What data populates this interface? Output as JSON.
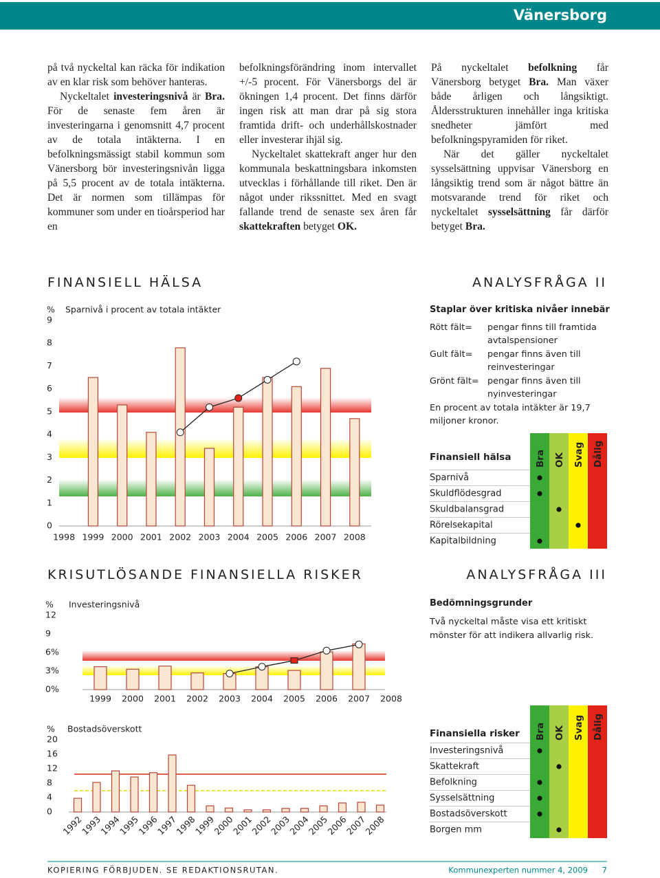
{
  "header": {
    "title": "Vänersborg"
  },
  "columns": [
    [
      [
        {
          "text": "på två nyckeltal kan räcka för indikation av en klar risk som behöver hanteras.",
          "bold": false
        }
      ],
      [
        {
          "text": "Nyckeltalet ",
          "bold": false
        },
        {
          "text": "investeringsnivå",
          "bold": true
        },
        {
          "text": " är ",
          "bold": false
        },
        {
          "text": "Bra.",
          "bold": true
        },
        {
          "text": " För de senaste fem åren är investeringarna i genomsnitt 4,7 procent av de totala intäkterna. I en befolkningsmässigt stabil kommun som Vänersborg bör investeringsnivån ligga på 5,5 procent av de totala intäkterna. Det är normen som tillämpas för kommuner som under en tioårsperiod har en",
          "bold": false
        }
      ]
    ],
    [
      [
        {
          "text": "befolkningsförändring inom intervallet +/-5 procent. För Vänersborgs del är ökningen 1,4 procent. Det finns därför ingen risk att man drar på sig stora framtida drift- och underhållskostnader eller investerar ihjäl sig.",
          "bold": false
        }
      ],
      [
        {
          "text": "Nyckeltalet skattekraft anger hur den kommunala beskattningsbara inkomsten utvecklas i förhållande till riket. Den är något under rikssnittet. Med en svagt fallande trend de senaste sex åren får ",
          "bold": false
        },
        {
          "text": "skattekraften",
          "bold": true
        },
        {
          "text": " betyget ",
          "bold": false
        },
        {
          "text": "OK.",
          "bold": true
        }
      ]
    ],
    [
      [
        {
          "text": "På nyckeltalet ",
          "bold": false
        },
        {
          "text": "befolkning",
          "bold": true
        },
        {
          "text": " får Vänersborg betyget ",
          "bold": false
        },
        {
          "text": "Bra.",
          "bold": true
        },
        {
          "text": " Man växer både årligen och långsiktigt. Åldersstrukturen innehåller inga kritiska snedheter jämfört med befolkningspyramiden för riket.",
          "bold": false
        }
      ],
      [
        {
          "text": "När det gäller nyckeltalet sysselsättning uppvisar Vänersborg en långsiktig trend som är något bättre än motsvarande trend för riket och nyckeltalet ",
          "bold": false
        },
        {
          "text": "sysselsättning",
          "bold": true
        },
        {
          "text": " får därför betyget ",
          "bold": false
        },
        {
          "text": "Bra.",
          "bold": true
        }
      ]
    ]
  ],
  "sections": [
    {
      "title": "FINANSIELL HÄLSA",
      "tag": "ANALYSFRÅGA II"
    },
    {
      "title": "KRISUTLÖSANDE FINANSIELLA RISKER",
      "tag": "ANALYSFRÅGA III"
    }
  ],
  "chart_data": [
    {
      "type": "bar",
      "title": "Sparnivå i procent av totala intäkter",
      "ylabel": "%",
      "categories": [
        "1998",
        "1999",
        "2000",
        "2001",
        "2002",
        "2003",
        "2004",
        "2005",
        "2006",
        "2007",
        "2008"
      ],
      "values": [
        null,
        6.5,
        5.3,
        4.1,
        7.8,
        3.4,
        5.2,
        6.5,
        6.1,
        6.9,
        4.7
      ],
      "color": "#fbe6d2",
      "stroke": "#b5473a",
      "line_values": [
        null,
        null,
        null,
        null,
        4.1,
        5.2,
        5.6,
        6.4,
        7.2,
        null,
        null
      ],
      "line_color": "#222222",
      "marker_fills": [
        null,
        null,
        null,
        null,
        "#ffffff",
        "#ffffff",
        "#e2231a",
        "#ffffff",
        "#ffffff",
        null,
        null
      ],
      "marker_shapes": [
        null,
        null,
        null,
        null,
        "circle",
        "circle",
        "circle",
        "circle",
        "circle",
        null,
        null
      ],
      "ylim": [
        0,
        9
      ],
      "yticks": [
        0,
        1,
        2,
        3,
        4,
        5,
        6,
        7,
        8,
        9
      ]
    },
    {
      "type": "bar",
      "title": "Investeringsnivå",
      "ylabel": "%",
      "categories": [
        "1999",
        "2000",
        "2001",
        "2002",
        "2003",
        "2004",
        "2005",
        "2006",
        "2007",
        "2008"
      ],
      "values": [
        3.7,
        3.3,
        3.8,
        2.7,
        2.6,
        3.7,
        3.1,
        6.1,
        7.4,
        null
      ],
      "color": "#fbe6d2",
      "stroke": "#b5473a",
      "line_values": [
        null,
        null,
        null,
        null,
        2.6,
        3.7,
        4.7,
        6.3,
        7.3,
        null
      ],
      "line_color": "#222222",
      "marker_fills": [
        null,
        null,
        null,
        null,
        "#ffffff",
        "#ffffff",
        "#e2231a",
        "#ffffff",
        "#ffffff",
        null
      ],
      "marker_shapes": [
        null,
        null,
        null,
        null,
        "circle",
        "circle",
        "square",
        "circle",
        "circle",
        null
      ],
      "ylim": [
        0,
        12
      ],
      "yticks": [
        {
          "value": 0,
          "label": "0%"
        },
        {
          "value": 3,
          "label": "3%"
        },
        {
          "value": 6,
          "label": "6%"
        },
        9,
        12
      ]
    },
    {
      "type": "bar",
      "title": "Bostadsöverskott",
      "ylabel": "%",
      "categories": [
        "1992",
        "1993",
        "1994",
        "1995",
        "1996",
        "1997",
        "1998",
        "1999",
        "2000",
        "2001",
        "2002",
        "2003",
        "2004",
        "2005",
        "2006",
        "2007",
        "2008"
      ],
      "values": [
        3.8,
        8.2,
        11.4,
        9.7,
        10.9,
        15.8,
        7.4,
        1.7,
        1.1,
        0.6,
        0.6,
        1.0,
        1.0,
        1.7,
        2.5,
        2.7,
        1.9
      ],
      "color": "#fbe6d2",
      "stroke": "#b5473a",
      "ylim": [
        0,
        20
      ],
      "yticks": [
        0,
        4,
        8,
        12,
        16,
        20
      ]
    }
  ],
  "legend_box": {
    "title": "Staplar över kritiska nivåer innebär",
    "items": [
      {
        "key": "Rött fält=",
        "text": "pengar finns till framtida avtalspensioner"
      },
      {
        "key": "Gult fält=",
        "text": "pengar finns även till reinvesteringar"
      },
      {
        "key": "Grönt fält=",
        "text": "pengar finns även till nyinvesteringar"
      }
    ],
    "note": "En procent av totala intäkter är 19,7 miljoner kronor."
  },
  "criteria": {
    "title": "Bedömningsgrunder",
    "text": "Två nyckeltal måste visa ett kritiskt mönster för att indikera allvarlig risk."
  },
  "tables": [
    {
      "title": "Finansiell hälsa",
      "columns": [
        "Bra",
        "OK",
        "Svag",
        "Dålig"
      ],
      "column_colors": [
        "#3aa935",
        "#a9cf46",
        "#fff200",
        "#e2231a"
      ],
      "rows": [
        {
          "label": "Sparnivå",
          "rating": 0
        },
        {
          "label": "Skuldflödesgrad",
          "rating": 0
        },
        {
          "label": "Skuldbalansgrad",
          "rating": 1
        },
        {
          "label": "Rörelsekapital",
          "rating": 2
        },
        {
          "label": "Kapitalbildning",
          "rating": 0
        }
      ]
    },
    {
      "title": "Finansiella risker",
      "columns": [
        "Bra",
        "OK",
        "Svag",
        "Dålig"
      ],
      "column_colors": [
        "#3aa935",
        "#a9cf46",
        "#fff200",
        "#e2231a"
      ],
      "rows": [
        {
          "label": "Investeringsnivå",
          "rating": 0
        },
        {
          "label": "Skattekraft",
          "rating": 1
        },
        {
          "label": "Befolkning",
          "rating": 0
        },
        {
          "label": "Sysselsättning",
          "rating": 0
        },
        {
          "label": "Bostadsöverskott",
          "rating": 0
        },
        {
          "label": "Borgen mm",
          "rating": 1
        }
      ]
    }
  ],
  "footer": {
    "left": "KOPIERING FÖRBJUDEN. SE REDAKTIONSRUTAN.",
    "publication": "Kommunexperten nummer 4, 2009",
    "page": 7
  }
}
